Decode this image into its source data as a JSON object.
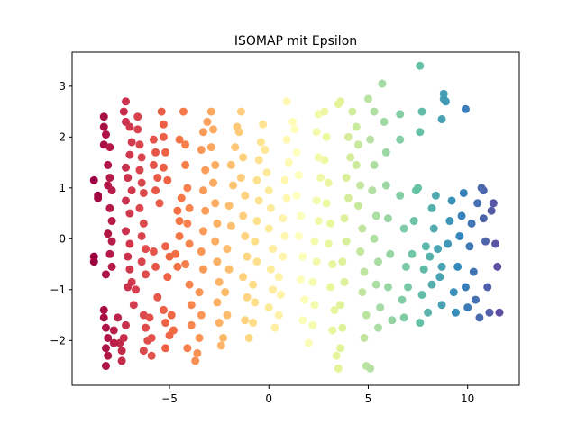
{
  "chart_data": {
    "type": "scatter",
    "title": "ISOMAP mit Epsilon",
    "xlabel": "",
    "ylabel": "",
    "xlim": [
      -9.9,
      12.6
    ],
    "ylim": [
      -2.88,
      3.67
    ],
    "xticks": [
      -5,
      0,
      5,
      10
    ],
    "yticks": [
      -2,
      -1,
      0,
      1,
      2,
      3
    ],
    "xtick_labels": [
      "−5",
      "0",
      "5",
      "10"
    ],
    "ytick_labels": [
      "−2",
      "−1",
      "0",
      "1",
      "2",
      "3"
    ],
    "grid": false,
    "legend": "none",
    "colormap": "Spectral",
    "color_by": "x",
    "marker_size_px": 9,
    "points": [
      [
        -8.8,
        1.15
      ],
      [
        -8.6,
        0.85
      ],
      [
        -8.6,
        0.8
      ],
      [
        -8.3,
        2.4
      ],
      [
        -8.3,
        2.2
      ],
      [
        -8.2,
        2.05
      ],
      [
        -8.3,
        1.85
      ],
      [
        -8.0,
        1.8
      ],
      [
        -8.1,
        1.45
      ],
      [
        -8.0,
        1.2
      ],
      [
        -8.1,
        1.05
      ],
      [
        -7.9,
        0.95
      ],
      [
        -8.0,
        0.6
      ],
      [
        -7.9,
        0.35
      ],
      [
        -8.1,
        0.1
      ],
      [
        -7.9,
        -0.05
      ],
      [
        -8.0,
        -0.3
      ],
      [
        -7.9,
        -0.55
      ],
      [
        -8.2,
        -0.7
      ],
      [
        -8.8,
        -0.35
      ],
      [
        -8.8,
        -0.45
      ],
      [
        -8.3,
        -1.55
      ],
      [
        -8.2,
        -1.75
      ],
      [
        -8.1,
        -1.95
      ],
      [
        -8.2,
        -2.15
      ],
      [
        -8.1,
        -2.3
      ],
      [
        -8.2,
        -2.5
      ],
      [
        -7.8,
        -1.8
      ],
      [
        -7.6,
        -1.55
      ],
      [
        -7.5,
        -2.05
      ],
      [
        -7.4,
        -2.4
      ],
      [
        -7.4,
        -2.2
      ],
      [
        -7.3,
        -1.95
      ],
      [
        -7.2,
        -1.7
      ],
      [
        -7.2,
        2.7
      ],
      [
        -7.3,
        2.5
      ],
      [
        -7.2,
        2.3
      ],
      [
        -7.0,
        2.2
      ],
      [
        -6.9,
        1.9
      ],
      [
        -7.0,
        1.65
      ],
      [
        -7.2,
        1.4
      ],
      [
        -7.1,
        1.2
      ],
      [
        -6.9,
        0.95
      ],
      [
        -7.2,
        0.75
      ],
      [
        -7.0,
        0.5
      ],
      [
        -7.2,
        0.15
      ],
      [
        -7.0,
        -0.1
      ],
      [
        -7.1,
        -0.35
      ],
      [
        -7.0,
        -0.6
      ],
      [
        -6.9,
        -0.85
      ],
      [
        -7.1,
        -0.95
      ],
      [
        -6.7,
        -1.0
      ],
      [
        -6.6,
        2.4
      ],
      [
        -6.6,
        2.15
      ],
      [
        -6.5,
        1.85
      ],
      [
        -6.4,
        1.6
      ],
      [
        -6.5,
        1.35
      ],
      [
        -6.4,
        1.1
      ],
      [
        -6.3,
        0.9
      ],
      [
        -6.5,
        0.6
      ],
      [
        -6.3,
        0.3
      ],
      [
        -6.4,
        0.05
      ],
      [
        -6.2,
        -0.2
      ],
      [
        -6.4,
        -0.45
      ],
      [
        -6.2,
        -0.7
      ],
      [
        -6.3,
        -1.5
      ],
      [
        -6.2,
        -1.75
      ],
      [
        -6.1,
        -2.0
      ],
      [
        -6.3,
        -2.2
      ],
      [
        -6.0,
        -1.55
      ],
      [
        -5.9,
        -1.95
      ],
      [
        -5.9,
        -2.3
      ],
      [
        -5.8,
        -0.25
      ],
      [
        -5.7,
        -0.55
      ],
      [
        -5.8,
        1.95
      ],
      [
        -5.7,
        1.7
      ],
      [
        -5.8,
        1.45
      ],
      [
        -5.6,
        1.2
      ],
      [
        -5.7,
        0.95
      ],
      [
        -5.5,
        0.7
      ],
      [
        -5.4,
        2.5
      ],
      [
        -5.3,
        2.25
      ],
      [
        -5.3,
        2.0
      ],
      [
        -5.2,
        1.7
      ],
      [
        -5.3,
        1.4
      ],
      [
        -5.1,
        1.15
      ],
      [
        -5.2,
        -0.15
      ],
      [
        -5.0,
        -0.35
      ],
      [
        -5.1,
        -0.75
      ],
      [
        -5.3,
        -1.4
      ],
      [
        -5.2,
        -1.65
      ],
      [
        -5.0,
        -1.9
      ],
      [
        -5.2,
        -2.15
      ],
      [
        -4.9,
        -1.5
      ],
      [
        -4.8,
        -1.8
      ],
      [
        -4.6,
        -0.55
      ],
      [
        -4.7,
        -0.3
      ],
      [
        -4.5,
        0.05
      ],
      [
        -4.5,
        0.35
      ],
      [
        -4.6,
        0.55
      ],
      [
        -4.4,
        0.8
      ],
      [
        -4.5,
        1.95
      ],
      [
        -4.3,
        2.5
      ],
      [
        -4.2,
        1.85
      ],
      [
        -4.2,
        1.45
      ],
      [
        -4.1,
        1.0
      ],
      [
        -4.0,
        0.6
      ],
      [
        -4.1,
        0.3
      ],
      [
        -4.0,
        -0.1
      ],
      [
        -4.2,
        -0.5
      ],
      [
        -4.0,
        -0.9
      ],
      [
        -3.9,
        -1.3
      ],
      [
        -3.9,
        -1.7
      ],
      [
        -4.1,
        -2.15
      ],
      [
        -3.7,
        -2.4
      ],
      [
        -3.6,
        -2.25
      ],
      [
        -3.5,
        -1.95
      ],
      [
        -3.4,
        -1.5
      ],
      [
        -3.5,
        -1.05
      ],
      [
        -3.3,
        -0.6
      ],
      [
        -3.4,
        -0.25
      ],
      [
        -3.3,
        0.15
      ],
      [
        -3.2,
        0.55
      ],
      [
        -3.3,
        0.95
      ],
      [
        -3.2,
        1.35
      ],
      [
        -3.4,
        1.75
      ],
      [
        -3.3,
        2.1
      ],
      [
        -3.1,
        2.3
      ],
      [
        -2.9,
        2.5
      ],
      [
        -2.8,
        2.15
      ],
      [
        -2.9,
        1.8
      ],
      [
        -2.7,
        1.45
      ],
      [
        -2.8,
        1.1
      ],
      [
        -2.7,
        0.7
      ],
      [
        -2.6,
        0.3
      ],
      [
        -2.7,
        -0.05
      ],
      [
        -2.6,
        -0.45
      ],
      [
        -2.5,
        -0.85
      ],
      [
        -2.6,
        -1.25
      ],
      [
        -2.5,
        -1.65
      ],
      [
        -2.4,
        -2.1
      ],
      [
        -2.3,
        -1.95
      ],
      [
        -2.1,
        -1.5
      ],
      [
        -2.2,
        -1.05
      ],
      [
        -2.0,
        -0.6
      ],
      [
        -2.1,
        -0.2
      ],
      [
        -1.9,
        0.25
      ],
      [
        -2.0,
        0.65
      ],
      [
        -1.8,
        1.05
      ],
      [
        -1.9,
        1.45
      ],
      [
        -1.7,
        1.8
      ],
      [
        -1.6,
        2.2
      ],
      [
        -1.4,
        2.5
      ],
      [
        -1.5,
        2.1
      ],
      [
        -1.3,
        1.6
      ],
      [
        -1.4,
        1.2
      ],
      [
        -1.2,
        0.85
      ],
      [
        -1.3,
        0.45
      ],
      [
        -1.2,
        0.05
      ],
      [
        -1.1,
        -0.35
      ],
      [
        -1.3,
        -0.75
      ],
      [
        -1.1,
        -1.15
      ],
      [
        -1.2,
        -1.6
      ],
      [
        -1.0,
        -1.95
      ],
      [
        -0.8,
        -1.65
      ],
      [
        -0.7,
        -1.25
      ],
      [
        -0.8,
        -0.9
      ],
      [
        -0.6,
        -0.45
      ],
      [
        -0.7,
        -0.05
      ],
      [
        -0.6,
        0.35
      ],
      [
        -0.5,
        0.75
      ],
      [
        -0.6,
        1.15
      ],
      [
        -0.5,
        1.55
      ],
      [
        -0.4,
        1.9
      ],
      [
        -0.3,
        2.25
      ],
      [
        -0.2,
        1.75
      ],
      [
        -0.1,
        1.3
      ],
      [
        0.0,
        0.95
      ],
      [
        0.1,
        0.6
      ],
      [
        0.0,
        0.2
      ],
      [
        0.2,
        -0.2
      ],
      [
        0.1,
        -0.6
      ],
      [
        0.2,
        -1.0
      ],
      [
        0.0,
        -1.35
      ],
      [
        0.3,
        -1.75
      ],
      [
        0.5,
        -1.5
      ],
      [
        0.6,
        -1.1
      ],
      [
        0.5,
        -0.75
      ],
      [
        0.7,
        -0.35
      ],
      [
        0.8,
        0.05
      ],
      [
        0.7,
        0.4
      ],
      [
        0.9,
        0.8
      ],
      [
        0.8,
        1.15
      ],
      [
        1.0,
        1.5
      ],
      [
        0.9,
        1.95
      ],
      [
        1.2,
        2.3
      ],
      [
        0.9,
        2.7
      ],
      [
        1.3,
        2.15
      ],
      [
        1.4,
        1.7
      ],
      [
        1.5,
        1.25
      ],
      [
        1.4,
        0.85
      ],
      [
        1.6,
        0.45
      ],
      [
        1.5,
        0.05
      ],
      [
        1.7,
        -0.35
      ],
      [
        1.6,
        -0.8
      ],
      [
        1.8,
        -1.2
      ],
      [
        1.7,
        -1.6
      ],
      [
        2.0,
        -2.05
      ],
      [
        2.2,
        -1.7
      ],
      [
        2.3,
        -1.3
      ],
      [
        2.2,
        -0.85
      ],
      [
        2.4,
        -0.45
      ],
      [
        2.3,
        -0.05
      ],
      [
        2.5,
        0.35
      ],
      [
        2.4,
        0.75
      ],
      [
        2.6,
        1.2
      ],
      [
        2.5,
        1.6
      ],
      [
        2.4,
        2.1
      ],
      [
        2.5,
        2.45
      ],
      [
        2.8,
        2.5
      ],
      [
        2.9,
        2.0
      ],
      [
        2.8,
        1.55
      ],
      [
        3.0,
        1.1
      ],
      [
        2.9,
        0.7
      ],
      [
        3.1,
        0.3
      ],
      [
        3.0,
        -0.1
      ],
      [
        3.2,
        -0.5
      ],
      [
        3.1,
        -0.95
      ],
      [
        3.3,
        -1.4
      ],
      [
        3.2,
        -1.8
      ],
      [
        3.4,
        -2.3
      ],
      [
        3.5,
        -2.55
      ],
      [
        3.6,
        -2.15
      ],
      [
        3.7,
        -1.75
      ],
      [
        3.6,
        -1.3
      ],
      [
        3.8,
        -0.85
      ],
      [
        3.7,
        -0.45
      ],
      [
        3.9,
        -0.05
      ],
      [
        3.8,
        0.4
      ],
      [
        4.0,
        0.8
      ],
      [
        3.9,
        1.2
      ],
      [
        4.1,
        1.6
      ],
      [
        4.0,
        2.0
      ],
      [
        3.6,
        2.7
      ],
      [
        3.5,
        2.65
      ],
      [
        4.2,
        2.5
      ],
      [
        4.4,
        2.2
      ],
      [
        4.5,
        1.85
      ],
      [
        4.4,
        1.45
      ],
      [
        4.6,
        1.05
      ],
      [
        4.5,
        0.65
      ],
      [
        4.7,
        0.2
      ],
      [
        4.6,
        -0.25
      ],
      [
        4.8,
        -0.65
      ],
      [
        4.7,
        -1.05
      ],
      [
        4.9,
        -1.5
      ],
      [
        4.8,
        -1.95
      ],
      [
        4.9,
        -2.5
      ],
      [
        5.1,
        -2.55
      ],
      [
        5.0,
        2.75
      ],
      [
        5.3,
        2.5
      ],
      [
        5.1,
        1.95
      ],
      [
        5.3,
        1.45
      ],
      [
        5.2,
        0.95
      ],
      [
        5.4,
        0.45
      ],
      [
        5.3,
        0.0
      ],
      [
        5.5,
        -0.45
      ],
      [
        5.4,
        -0.9
      ],
      [
        5.6,
        -1.35
      ],
      [
        5.5,
        -1.75
      ],
      [
        5.7,
        3.05
      ],
      [
        5.8,
        2.3
      ],
      [
        5.9,
        1.7
      ],
      [
        5.9,
        1.05
      ],
      [
        6.0,
        0.4
      ],
      [
        6.1,
        -0.3
      ],
      [
        6.0,
        -0.95
      ],
      [
        6.2,
        -1.6
      ],
      [
        6.6,
        2.45
      ],
      [
        6.6,
        1.95
      ],
      [
        6.6,
        0.85
      ],
      [
        6.8,
        0.2
      ],
      [
        6.9,
        -0.55
      ],
      [
        6.7,
        -1.2
      ],
      [
        6.8,
        -1.55
      ],
      [
        7.0,
        -0.95
      ],
      [
        7.2,
        -0.3
      ],
      [
        7.3,
        0.35
      ],
      [
        7.4,
        0.95
      ],
      [
        7.5,
        1.0
      ],
      [
        7.6,
        3.4
      ],
      [
        7.7,
        2.5
      ],
      [
        7.6,
        2.1
      ],
      [
        7.9,
        -0.15
      ],
      [
        7.8,
        -0.6
      ],
      [
        7.7,
        -1.1
      ],
      [
        7.6,
        -1.65
      ],
      [
        8.0,
        -1.45
      ],
      [
        8.2,
        -0.9
      ],
      [
        8.1,
        -0.35
      ],
      [
        8.3,
        0.2
      ],
      [
        8.2,
        0.6
      ],
      [
        8.4,
        0.85
      ],
      [
        8.5,
        -0.2
      ],
      [
        8.6,
        -0.75
      ],
      [
        8.7,
        -1.3
      ],
      [
        8.8,
        2.85
      ],
      [
        8.8,
        2.75
      ],
      [
        8.9,
        2.7
      ],
      [
        8.7,
        2.35
      ],
      [
        8.7,
        -0.55
      ],
      [
        9.0,
        -0.1
      ],
      [
        9.1,
        0.35
      ],
      [
        9.2,
        0.75
      ],
      [
        9.3,
        -1.05
      ],
      [
        9.4,
        -1.45
      ],
      [
        9.5,
        -0.55
      ],
      [
        9.6,
        0.05
      ],
      [
        9.7,
        0.45
      ],
      [
        9.8,
        0.9
      ],
      [
        9.9,
        2.55
      ],
      [
        9.9,
        -0.95
      ],
      [
        10.0,
        -1.35
      ],
      [
        10.1,
        -0.15
      ],
      [
        10.2,
        0.3
      ],
      [
        10.3,
        -0.65
      ],
      [
        10.4,
        -1.2
      ],
      [
        10.5,
        0.7
      ],
      [
        10.6,
        -1.55
      ],
      [
        10.7,
        1.0
      ],
      [
        10.8,
        0.95
      ],
      [
        10.8,
        0.4
      ],
      [
        10.9,
        -0.05
      ],
      [
        11.0,
        -0.95
      ],
      [
        11.1,
        -1.45
      ],
      [
        11.2,
        0.55
      ],
      [
        11.3,
        0.7
      ],
      [
        11.4,
        -0.1
      ],
      [
        11.5,
        -0.55
      ],
      [
        11.6,
        -1.45
      ],
      [
        -8.3,
        -1.4
      ],
      [
        -7.8,
        -2.05
      ],
      [
        -6.8,
        -1.3
      ],
      [
        -5.6,
        -1.15
      ]
    ]
  }
}
